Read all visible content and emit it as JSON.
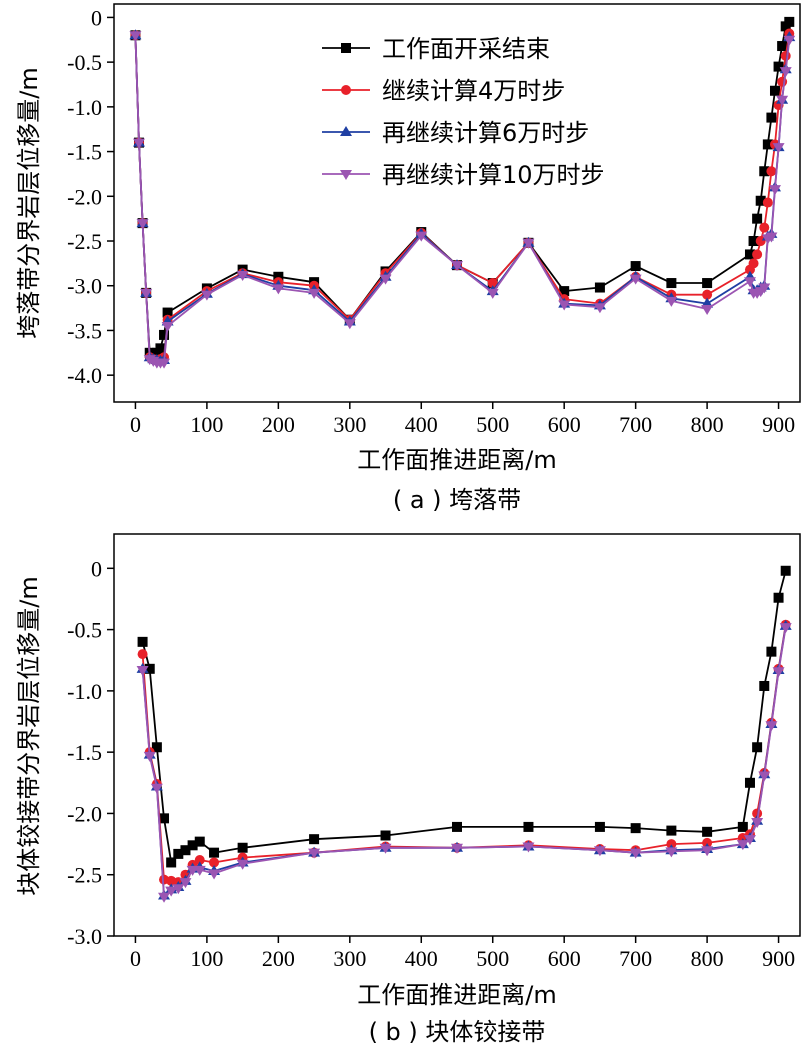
{
  "chart_data": [
    {
      "type": "line",
      "caption": "( a ) 垮落带",
      "xlabel": "工作面推进距离/m",
      "ylabel": "垮落带分界岩层位移量/m",
      "xlim": [
        -30,
        930
      ],
      "ylim": [
        -4.3,
        0.15
      ],
      "xticks": [
        0,
        100,
        200,
        300,
        400,
        500,
        600,
        700,
        800,
        900
      ],
      "yticks": [
        0,
        -0.5,
        -1.0,
        -1.5,
        -2.0,
        -2.5,
        -3.0,
        -3.5,
        -4.0
      ],
      "ytick_labels": [
        "0",
        "-0.5",
        "-1.0",
        "-1.5",
        "-2.0",
        "-2.5",
        "-3.0",
        "-3.5",
        "-4.0"
      ],
      "grid": false,
      "legend_position": "top-right",
      "series": [
        {
          "name": "工作面开采结束",
          "color": "#000000",
          "marker": "square",
          "points": [
            [
              0,
              -0.2
            ],
            [
              5,
              -1.4
            ],
            [
              10,
              -2.3
            ],
            [
              15,
              -3.08
            ],
            [
              20,
              -3.75
            ],
            [
              25,
              -3.8
            ],
            [
              30,
              -3.75
            ],
            [
              35,
              -3.7
            ],
            [
              40,
              -3.55
            ],
            [
              45,
              -3.3
            ],
            [
              100,
              -3.03
            ],
            [
              150,
              -2.82
            ],
            [
              200,
              -2.9
            ],
            [
              250,
              -2.96
            ],
            [
              300,
              -3.38
            ],
            [
              350,
              -2.84
            ],
            [
              400,
              -2.4
            ],
            [
              450,
              -2.77
            ],
            [
              500,
              -2.97
            ],
            [
              550,
              -2.52
            ],
            [
              600,
              -3.06
            ],
            [
              650,
              -3.02
            ],
            [
              700,
              -2.78
            ],
            [
              750,
              -2.97
            ],
            [
              800,
              -2.97
            ],
            [
              860,
              -2.65
            ],
            [
              865,
              -2.5
            ],
            [
              870,
              -2.25
            ],
            [
              875,
              -2.05
            ],
            [
              880,
              -1.72
            ],
            [
              885,
              -1.42
            ],
            [
              890,
              -1.12
            ],
            [
              895,
              -0.82
            ],
            [
              900,
              -0.55
            ],
            [
              905,
              -0.32
            ],
            [
              910,
              -0.1
            ],
            [
              915,
              -0.05
            ]
          ]
        },
        {
          "name": "继续计算4万时步",
          "color": "#e8212a",
          "marker": "circle",
          "points": [
            [
              0,
              -0.2
            ],
            [
              5,
              -1.4
            ],
            [
              10,
              -2.3
            ],
            [
              15,
              -3.08
            ],
            [
              20,
              -3.8
            ],
            [
              25,
              -3.82
            ],
            [
              30,
              -3.83
            ],
            [
              35,
              -3.82
            ],
            [
              40,
              -3.8
            ],
            [
              45,
              -3.38
            ],
            [
              100,
              -3.06
            ],
            [
              150,
              -2.86
            ],
            [
              200,
              -2.96
            ],
            [
              250,
              -3.0
            ],
            [
              300,
              -3.38
            ],
            [
              350,
              -2.86
            ],
            [
              400,
              -2.41
            ],
            [
              450,
              -2.77
            ],
            [
              500,
              -2.97
            ],
            [
              550,
              -2.52
            ],
            [
              600,
              -3.15
            ],
            [
              650,
              -3.2
            ],
            [
              700,
              -2.9
            ],
            [
              750,
              -3.1
            ],
            [
              800,
              -3.1
            ],
            [
              860,
              -2.82
            ],
            [
              865,
              -2.75
            ],
            [
              870,
              -2.65
            ],
            [
              875,
              -2.5
            ],
            [
              880,
              -2.35
            ],
            [
              885,
              -2.07
            ],
            [
              890,
              -1.72
            ],
            [
              895,
              -1.42
            ],
            [
              900,
              -0.98
            ],
            [
              905,
              -0.72
            ],
            [
              910,
              -0.43
            ],
            [
              915,
              -0.18
            ]
          ]
        },
        {
          "name": "再继续计算6万时步",
          "color": "#1f3fa3",
          "marker": "triangle-up",
          "points": [
            [
              0,
              -0.2
            ],
            [
              5,
              -1.4
            ],
            [
              10,
              -2.3
            ],
            [
              15,
              -3.08
            ],
            [
              20,
              -3.8
            ],
            [
              25,
              -3.82
            ],
            [
              30,
              -3.83
            ],
            [
              35,
              -3.84
            ],
            [
              40,
              -3.83
            ],
            [
              45,
              -3.4
            ],
            [
              100,
              -3.09
            ],
            [
              150,
              -2.87
            ],
            [
              200,
              -3.0
            ],
            [
              250,
              -3.05
            ],
            [
              300,
              -3.4
            ],
            [
              350,
              -2.9
            ],
            [
              400,
              -2.42
            ],
            [
              450,
              -2.77
            ],
            [
              500,
              -3.06
            ],
            [
              550,
              -2.52
            ],
            [
              600,
              -3.2
            ],
            [
              650,
              -3.22
            ],
            [
              700,
              -2.9
            ],
            [
              750,
              -3.14
            ],
            [
              800,
              -3.2
            ],
            [
              860,
              -2.9
            ],
            [
              865,
              -3.05
            ],
            [
              870,
              -3.05
            ],
            [
              875,
              -3.02
            ],
            [
              880,
              -3.0
            ],
            [
              885,
              -2.45
            ],
            [
              890,
              -2.42
            ],
            [
              895,
              -1.9
            ],
            [
              900,
              -1.45
            ],
            [
              905,
              -0.92
            ],
            [
              910,
              -0.58
            ],
            [
              915,
              -0.22
            ]
          ]
        },
        {
          "name": "再继续计算10万时步",
          "color": "#9b55b2",
          "marker": "triangle-down",
          "points": [
            [
              0,
              -0.2
            ],
            [
              5,
              -1.4
            ],
            [
              10,
              -2.3
            ],
            [
              15,
              -3.08
            ],
            [
              20,
              -3.82
            ],
            [
              25,
              -3.84
            ],
            [
              30,
              -3.86
            ],
            [
              35,
              -3.86
            ],
            [
              40,
              -3.86
            ],
            [
              45,
              -3.45
            ],
            [
              100,
              -3.1
            ],
            [
              150,
              -2.88
            ],
            [
              200,
              -3.03
            ],
            [
              250,
              -3.08
            ],
            [
              300,
              -3.42
            ],
            [
              350,
              -2.92
            ],
            [
              400,
              -2.44
            ],
            [
              450,
              -2.77
            ],
            [
              500,
              -3.08
            ],
            [
              550,
              -2.52
            ],
            [
              600,
              -3.21
            ],
            [
              650,
              -3.24
            ],
            [
              700,
              -2.92
            ],
            [
              750,
              -3.17
            ],
            [
              800,
              -3.26
            ],
            [
              860,
              -2.95
            ],
            [
              865,
              -3.08
            ],
            [
              870,
              -3.08
            ],
            [
              875,
              -3.06
            ],
            [
              880,
              -3.02
            ],
            [
              885,
              -2.47
            ],
            [
              890,
              -2.45
            ],
            [
              895,
              -1.92
            ],
            [
              900,
              -1.45
            ],
            [
              905,
              -0.92
            ],
            [
              910,
              -0.6
            ],
            [
              915,
              -0.25
            ]
          ]
        }
      ]
    },
    {
      "type": "line",
      "caption": "( b ) 块体铰接带",
      "xlabel": "工作面推进距离/m",
      "ylabel": "块体铰接带分界岩层位移量/m",
      "xlim": [
        -30,
        930
      ],
      "ylim": [
        -3.0,
        0.28
      ],
      "xticks": [
        0,
        100,
        200,
        300,
        400,
        500,
        600,
        700,
        800,
        900
      ],
      "yticks": [
        0,
        -0.5,
        -1.0,
        -1.5,
        -2.0,
        -2.5,
        -3.0
      ],
      "ytick_labels": [
        "0",
        "-0.5",
        "-1.0",
        "-1.5",
        "-2.0",
        "-2.5",
        "-3.0"
      ],
      "grid": false,
      "series": [
        {
          "name": "工作面开采结束",
          "color": "#000000",
          "marker": "square",
          "points": [
            [
              10,
              -0.6
            ],
            [
              20,
              -0.82
            ],
            [
              30,
              -1.46
            ],
            [
              40,
              -2.04
            ],
            [
              50,
              -2.4
            ],
            [
              60,
              -2.33
            ],
            [
              70,
              -2.3
            ],
            [
              80,
              -2.26
            ],
            [
              90,
              -2.23
            ],
            [
              110,
              -2.32
            ],
            [
              150,
              -2.28
            ],
            [
              250,
              -2.21
            ],
            [
              350,
              -2.18
            ],
            [
              450,
              -2.11
            ],
            [
              550,
              -2.11
            ],
            [
              650,
              -2.11
            ],
            [
              700,
              -2.12
            ],
            [
              750,
              -2.14
            ],
            [
              800,
              -2.15
            ],
            [
              850,
              -2.11
            ],
            [
              860,
              -1.75
            ],
            [
              870,
              -1.46
            ],
            [
              880,
              -0.96
            ],
            [
              890,
              -0.68
            ],
            [
              900,
              -0.24
            ],
            [
              910,
              -0.02
            ]
          ]
        },
        {
          "name": "继续计算4万时步",
          "color": "#e8212a",
          "marker": "circle",
          "points": [
            [
              10,
              -0.7
            ],
            [
              20,
              -1.5
            ],
            [
              30,
              -1.76
            ],
            [
              40,
              -2.54
            ],
            [
              50,
              -2.55
            ],
            [
              60,
              -2.56
            ],
            [
              70,
              -2.5
            ],
            [
              80,
              -2.42
            ],
            [
              90,
              -2.38
            ],
            [
              110,
              -2.4
            ],
            [
              150,
              -2.36
            ],
            [
              250,
              -2.32
            ],
            [
              350,
              -2.27
            ],
            [
              450,
              -2.28
            ],
            [
              550,
              -2.26
            ],
            [
              650,
              -2.29
            ],
            [
              700,
              -2.3
            ],
            [
              750,
              -2.25
            ],
            [
              800,
              -2.24
            ],
            [
              850,
              -2.2
            ],
            [
              860,
              -2.17
            ],
            [
              870,
              -2.0
            ],
            [
              880,
              -1.67
            ],
            [
              890,
              -1.26
            ],
            [
              900,
              -0.82
            ],
            [
              910,
              -0.46
            ]
          ]
        },
        {
          "name": "再继续计算6万时步",
          "color": "#1f3fa3",
          "marker": "triangle-up",
          "points": [
            [
              10,
              -0.82
            ],
            [
              20,
              -1.52
            ],
            [
              30,
              -1.78
            ],
            [
              40,
              -2.67
            ],
            [
              50,
              -2.62
            ],
            [
              60,
              -2.6
            ],
            [
              70,
              -2.55
            ],
            [
              80,
              -2.45
            ],
            [
              90,
              -2.44
            ],
            [
              110,
              -2.47
            ],
            [
              150,
              -2.4
            ],
            [
              250,
              -2.32
            ],
            [
              350,
              -2.28
            ],
            [
              450,
              -2.28
            ],
            [
              550,
              -2.27
            ],
            [
              650,
              -2.3
            ],
            [
              700,
              -2.32
            ],
            [
              750,
              -2.3
            ],
            [
              800,
              -2.29
            ],
            [
              850,
              -2.25
            ],
            [
              860,
              -2.2
            ],
            [
              870,
              -2.06
            ],
            [
              880,
              -1.68
            ],
            [
              890,
              -1.27
            ],
            [
              900,
              -0.83
            ],
            [
              910,
              -0.47
            ]
          ]
        },
        {
          "name": "再继续计算10万时步",
          "color": "#9b55b2",
          "marker": "triangle-down",
          "points": [
            [
              10,
              -0.83
            ],
            [
              20,
              -1.53
            ],
            [
              30,
              -1.79
            ],
            [
              40,
              -2.68
            ],
            [
              50,
              -2.63
            ],
            [
              60,
              -2.61
            ],
            [
              70,
              -2.56
            ],
            [
              80,
              -2.46
            ],
            [
              90,
              -2.46
            ],
            [
              110,
              -2.49
            ],
            [
              150,
              -2.41
            ],
            [
              250,
              -2.32
            ],
            [
              350,
              -2.28
            ],
            [
              450,
              -2.28
            ],
            [
              550,
              -2.27
            ],
            [
              650,
              -2.3
            ],
            [
              700,
              -2.32
            ],
            [
              750,
              -2.31
            ],
            [
              800,
              -2.3
            ],
            [
              850,
              -2.25
            ],
            [
              860,
              -2.21
            ],
            [
              870,
              -2.07
            ],
            [
              880,
              -1.69
            ],
            [
              890,
              -1.28
            ],
            [
              900,
              -0.84
            ],
            [
              910,
              -0.48
            ]
          ]
        }
      ]
    }
  ]
}
